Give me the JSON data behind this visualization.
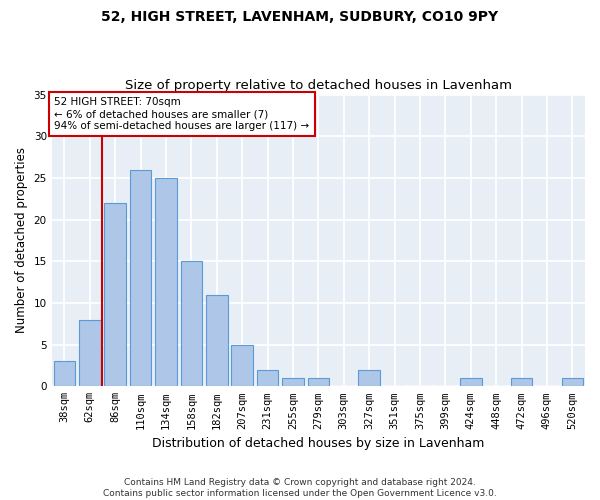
{
  "title1": "52, HIGH STREET, LAVENHAM, SUDBURY, CO10 9PY",
  "title2": "Size of property relative to detached houses in Lavenham",
  "xlabel": "Distribution of detached houses by size in Lavenham",
  "ylabel": "Number of detached properties",
  "categories": [
    "38sqm",
    "62sqm",
    "86sqm",
    "110sqm",
    "134sqm",
    "158sqm",
    "182sqm",
    "207sqm",
    "231sqm",
    "255sqm",
    "279sqm",
    "303sqm",
    "327sqm",
    "351sqm",
    "375sqm",
    "399sqm",
    "424sqm",
    "448sqm",
    "472sqm",
    "496sqm",
    "520sqm"
  ],
  "values": [
    3,
    8,
    22,
    26,
    25,
    15,
    11,
    5,
    2,
    1,
    1,
    0,
    2,
    0,
    0,
    0,
    1,
    0,
    1,
    0,
    1
  ],
  "bar_color": "#aec6e8",
  "bar_edge_color": "#5b9bd5",
  "background_color": "#e8eef6",
  "grid_color": "#ffffff",
  "vline_x": 1.5,
  "vline_color": "#cc0000",
  "annotation_text": "52 HIGH STREET: 70sqm\n← 6% of detached houses are smaller (7)\n94% of semi-detached houses are larger (117) →",
  "annotation_box_color": "#ffffff",
  "annotation_box_edge": "#cc0000",
  "ylim": [
    0,
    35
  ],
  "yticks": [
    0,
    5,
    10,
    15,
    20,
    25,
    30,
    35
  ],
  "footer": "Contains HM Land Registry data © Crown copyright and database right 2024.\nContains public sector information licensed under the Open Government Licence v3.0.",
  "title1_fontsize": 10,
  "title2_fontsize": 9.5,
  "xlabel_fontsize": 9,
  "ylabel_fontsize": 8.5,
  "tick_fontsize": 7.5,
  "footer_fontsize": 6.5
}
